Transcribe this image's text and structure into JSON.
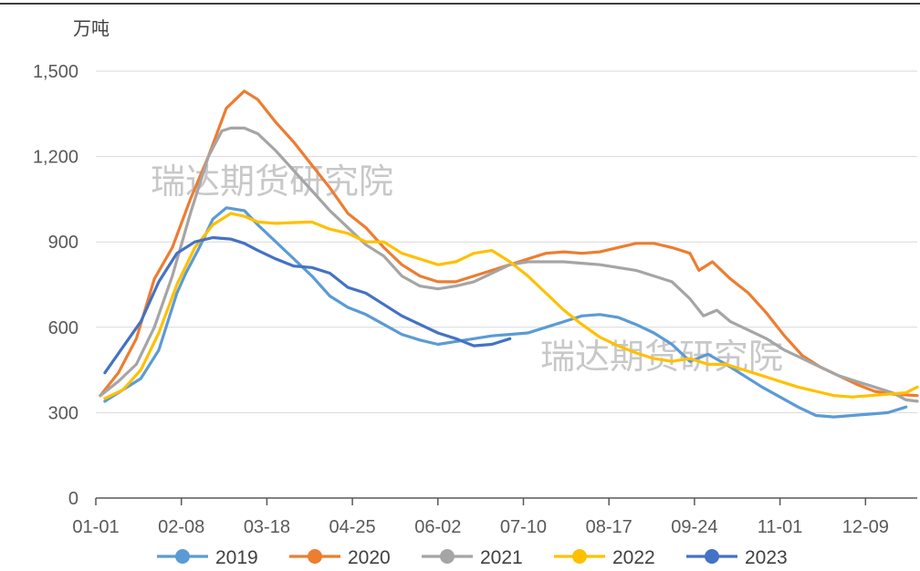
{
  "chart_data": {
    "type": "line",
    "unit": "万吨",
    "watermark": "瑞达期货研究院",
    "ylim": [
      0,
      1500
    ],
    "yticks": [
      0,
      300,
      600,
      900,
      1200,
      1500
    ],
    "ytick_labels": [
      "0",
      "300",
      "600",
      "900",
      "1,200",
      "1,500"
    ],
    "xlim": [
      0,
      365
    ],
    "xticks": [
      0,
      38,
      76,
      114,
      152,
      190,
      228,
      266,
      304,
      342
    ],
    "xtick_labels": [
      "01-01",
      "02-08",
      "03-18",
      "04-25",
      "06-02",
      "07-10",
      "08-17",
      "09-24",
      "11-01",
      "12-09"
    ],
    "grid": true,
    "legend_position": "bottom",
    "colors": {
      "2019": "#5b9bd5",
      "2020": "#ed7d31",
      "2021": "#a5a5a5",
      "2022": "#ffc000",
      "2023": "#4472c4",
      "grid": "#d9d9d9",
      "axis": "#595959"
    },
    "series": [
      {
        "name": "2019",
        "color": "#5b9bd5",
        "x": [
          4,
          12,
          20,
          28,
          36,
          40,
          46,
          52,
          58,
          66,
          72,
          80,
          88,
          96,
          104,
          112,
          120,
          128,
          136,
          144,
          152,
          160,
          168,
          176,
          184,
          192,
          200,
          208,
          216,
          224,
          232,
          240,
          248,
          256,
          264,
          272,
          280,
          288,
          296,
          304,
          312,
          320,
          328,
          336,
          344,
          352,
          360
        ],
        "y": [
          340,
          380,
          420,
          520,
          720,
          790,
          880,
          980,
          1020,
          1010,
          960,
          900,
          840,
          780,
          710,
          670,
          645,
          610,
          575,
          555,
          540,
          550,
          560,
          570,
          575,
          580,
          600,
          620,
          640,
          645,
          635,
          610,
          580,
          540,
          480,
          505,
          470,
          430,
          390,
          355,
          320,
          290,
          285,
          290,
          295,
          300,
          320
        ]
      },
      {
        "name": "2020",
        "color": "#ed7d31",
        "x": [
          2,
          10,
          18,
          26,
          34,
          42,
          50,
          58,
          66,
          72,
          80,
          88,
          96,
          104,
          112,
          120,
          128,
          136,
          144,
          152,
          160,
          168,
          176,
          184,
          192,
          200,
          208,
          216,
          224,
          232,
          240,
          248,
          256,
          264,
          268,
          274,
          282,
          290,
          298,
          306,
          314,
          322,
          330,
          338,
          346,
          354,
          365
        ],
        "y": [
          360,
          440,
          560,
          770,
          880,
          1050,
          1200,
          1370,
          1430,
          1400,
          1320,
          1250,
          1170,
          1090,
          1000,
          950,
          880,
          820,
          780,
          760,
          760,
          780,
          800,
          820,
          840,
          860,
          865,
          860,
          865,
          880,
          895,
          895,
          880,
          860,
          800,
          830,
          770,
          720,
          650,
          570,
          500,
          460,
          430,
          400,
          375,
          365,
          360
        ]
      },
      {
        "name": "2021",
        "color": "#a5a5a5",
        "x": [
          2,
          10,
          18,
          26,
          34,
          42,
          50,
          56,
          60,
          66,
          72,
          80,
          88,
          96,
          104,
          112,
          120,
          128,
          136,
          144,
          152,
          160,
          168,
          176,
          184,
          192,
          200,
          208,
          216,
          224,
          232,
          240,
          248,
          256,
          264,
          270,
          276,
          282,
          290,
          298,
          306,
          314,
          322,
          330,
          338,
          346,
          354,
          360,
          365
        ],
        "y": [
          360,
          410,
          470,
          600,
          780,
          1000,
          1200,
          1290,
          1300,
          1300,
          1280,
          1220,
          1150,
          1080,
          1010,
          950,
          890,
          850,
          780,
          745,
          735,
          745,
          760,
          790,
          820,
          830,
          830,
          830,
          825,
          820,
          810,
          800,
          780,
          760,
          700,
          640,
          660,
          620,
          590,
          560,
          520,
          490,
          460,
          430,
          410,
          390,
          370,
          345,
          340
        ]
      },
      {
        "name": "2022",
        "color": "#ffc000",
        "x": [
          4,
          12,
          20,
          28,
          36,
          44,
          52,
          60,
          66,
          72,
          80,
          88,
          96,
          104,
          112,
          120,
          128,
          136,
          144,
          152,
          160,
          168,
          176,
          184,
          192,
          200,
          208,
          216,
          224,
          232,
          240,
          248,
          256,
          264,
          272,
          280,
          288,
          296,
          304,
          312,
          320,
          328,
          336,
          344,
          352,
          360,
          365
        ],
        "y": [
          350,
          380,
          450,
          580,
          750,
          880,
          960,
          1000,
          990,
          970,
          965,
          968,
          970,
          945,
          930,
          900,
          900,
          860,
          840,
          820,
          830,
          860,
          870,
          830,
          780,
          720,
          660,
          610,
          565,
          535,
          510,
          490,
          480,
          490,
          470,
          470,
          450,
          430,
          410,
          390,
          375,
          360,
          355,
          360,
          365,
          370,
          390
        ]
      },
      {
        "name": "2023",
        "color": "#4472c4",
        "x": [
          4,
          12,
          20,
          28,
          36,
          44,
          52,
          60,
          66,
          72,
          80,
          88,
          96,
          104,
          112,
          120,
          128,
          136,
          144,
          152,
          160,
          168,
          176,
          184
        ],
        "y": [
          440,
          530,
          620,
          760,
          860,
          900,
          915,
          910,
          895,
          870,
          840,
          815,
          810,
          790,
          740,
          720,
          680,
          640,
          610,
          580,
          560,
          535,
          540,
          560
        ]
      }
    ]
  }
}
